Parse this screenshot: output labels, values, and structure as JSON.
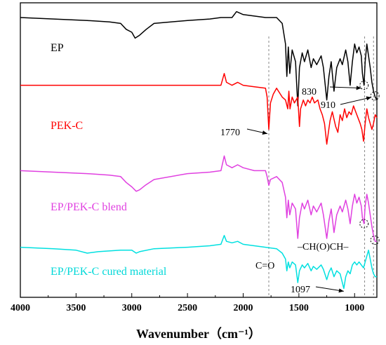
{
  "chart_data": {
    "type": "line",
    "xlabel": "Wavenumber（cm⁻¹）",
    "xlim": [
      4000,
      800
    ],
    "reversed_x": true,
    "ylim": [
      0,
      100
    ],
    "y_ticks_shown": false,
    "grid": false,
    "x_ticks": [
      4000,
      3500,
      3000,
      2500,
      2000,
      1500,
      1000
    ],
    "series": [
      {
        "name": "EP",
        "color": "#000000",
        "points": [
          [
            4000,
            95
          ],
          [
            3700,
            94.5
          ],
          [
            3400,
            94
          ],
          [
            3200,
            93.5
          ],
          [
            3100,
            93
          ],
          [
            3050,
            91
          ],
          [
            3000,
            90
          ],
          [
            2970,
            88
          ],
          [
            2930,
            89
          ],
          [
            2870,
            91
          ],
          [
            2800,
            93
          ],
          [
            2500,
            94
          ],
          [
            2300,
            94.5
          ],
          [
            2200,
            95
          ],
          [
            2100,
            95
          ],
          [
            2060,
            97
          ],
          [
            2000,
            96
          ],
          [
            1900,
            95.5
          ],
          [
            1800,
            95
          ],
          [
            1700,
            95
          ],
          [
            1650,
            93
          ],
          [
            1620,
            86
          ],
          [
            1608,
            75
          ],
          [
            1595,
            85
          ],
          [
            1582,
            76
          ],
          [
            1560,
            84
          ],
          [
            1530,
            80
          ],
          [
            1510,
            65
          ],
          [
            1495,
            78
          ],
          [
            1470,
            83
          ],
          [
            1450,
            80
          ],
          [
            1420,
            84
          ],
          [
            1390,
            78
          ],
          [
            1370,
            81
          ],
          [
            1340,
            79
          ],
          [
            1300,
            82
          ],
          [
            1280,
            78
          ],
          [
            1250,
            67
          ],
          [
            1230,
            75
          ],
          [
            1210,
            80
          ],
          [
            1185,
            70
          ],
          [
            1160,
            78
          ],
          [
            1130,
            81
          ],
          [
            1110,
            79
          ],
          [
            1080,
            84
          ],
          [
            1060,
            80
          ],
          [
            1040,
            72
          ],
          [
            1020,
            80
          ],
          [
            1000,
            86
          ],
          [
            980,
            83
          ],
          [
            960,
            85
          ],
          [
            940,
            82
          ],
          [
            930,
            76
          ],
          [
            915,
            72
          ],
          [
            905,
            80
          ],
          [
            890,
            86
          ],
          [
            875,
            82
          ],
          [
            860,
            78
          ],
          [
            845,
            73
          ],
          [
            830,
            70
          ],
          [
            815,
            68
          ],
          [
            800,
            67
          ]
        ]
      },
      {
        "name": "PEK-C",
        "color": "#ff0000",
        "points": [
          [
            4000,
            72
          ],
          [
            3500,
            72
          ],
          [
            3000,
            72
          ],
          [
            2500,
            72
          ],
          [
            2200,
            72
          ],
          [
            2170,
            76
          ],
          [
            2150,
            73
          ],
          [
            2100,
            72
          ],
          [
            2050,
            73
          ],
          [
            2000,
            72
          ],
          [
            1900,
            71.5
          ],
          [
            1800,
            71
          ],
          [
            1785,
            68
          ],
          [
            1770,
            57
          ],
          [
            1755,
            66
          ],
          [
            1730,
            69
          ],
          [
            1700,
            71
          ],
          [
            1650,
            68
          ],
          [
            1620,
            67
          ],
          [
            1600,
            64
          ],
          [
            1590,
            70
          ],
          [
            1580,
            64
          ],
          [
            1560,
            68
          ],
          [
            1540,
            66
          ],
          [
            1510,
            68
          ],
          [
            1495,
            58
          ],
          [
            1485,
            64
          ],
          [
            1460,
            67
          ],
          [
            1440,
            65
          ],
          [
            1420,
            67
          ],
          [
            1400,
            66
          ],
          [
            1380,
            68
          ],
          [
            1360,
            66
          ],
          [
            1330,
            67
          ],
          [
            1310,
            64
          ],
          [
            1290,
            62
          ],
          [
            1270,
            59
          ],
          [
            1250,
            52
          ],
          [
            1235,
            56
          ],
          [
            1220,
            60
          ],
          [
            1200,
            63
          ],
          [
            1170,
            58
          ],
          [
            1150,
            56
          ],
          [
            1130,
            62
          ],
          [
            1110,
            60
          ],
          [
            1090,
            64
          ],
          [
            1070,
            61
          ],
          [
            1050,
            63
          ],
          [
            1030,
            62
          ],
          [
            1010,
            65
          ],
          [
            990,
            63
          ],
          [
            970,
            61
          ],
          [
            950,
            59
          ],
          [
            935,
            57
          ],
          [
            920,
            53
          ],
          [
            905,
            59
          ],
          [
            890,
            64
          ],
          [
            875,
            61
          ],
          [
            860,
            59
          ],
          [
            845,
            57
          ],
          [
            830,
            59
          ],
          [
            815,
            62
          ],
          [
            800,
            61
          ]
        ]
      },
      {
        "name": "EP/PEK-C blend",
        "color": "#e040e0",
        "points": [
          [
            4000,
            43
          ],
          [
            3700,
            42.5
          ],
          [
            3400,
            42
          ],
          [
            3200,
            41.5
          ],
          [
            3100,
            41
          ],
          [
            3050,
            39
          ],
          [
            3000,
            37.5
          ],
          [
            2960,
            36
          ],
          [
            2930,
            36.5
          ],
          [
            2880,
            38
          ],
          [
            2800,
            40
          ],
          [
            2500,
            42
          ],
          [
            2300,
            42.5
          ],
          [
            2200,
            43
          ],
          [
            2170,
            48
          ],
          [
            2150,
            45
          ],
          [
            2100,
            44
          ],
          [
            2050,
            45
          ],
          [
            2000,
            44
          ],
          [
            1900,
            43
          ],
          [
            1800,
            43
          ],
          [
            1785,
            41
          ],
          [
            1770,
            38
          ],
          [
            1755,
            40
          ],
          [
            1700,
            41
          ],
          [
            1650,
            39
          ],
          [
            1620,
            34
          ],
          [
            1608,
            27
          ],
          [
            1595,
            33
          ],
          [
            1582,
            28
          ],
          [
            1560,
            32
          ],
          [
            1530,
            30
          ],
          [
            1510,
            20
          ],
          [
            1495,
            27
          ],
          [
            1470,
            32
          ],
          [
            1450,
            30
          ],
          [
            1420,
            33
          ],
          [
            1390,
            28
          ],
          [
            1370,
            31
          ],
          [
            1340,
            29
          ],
          [
            1300,
            32
          ],
          [
            1280,
            28
          ],
          [
            1250,
            20
          ],
          [
            1230,
            26
          ],
          [
            1210,
            30
          ],
          [
            1185,
            22
          ],
          [
            1160,
            28
          ],
          [
            1130,
            31
          ],
          [
            1110,
            29
          ],
          [
            1080,
            33
          ],
          [
            1060,
            30
          ],
          [
            1040,
            25
          ],
          [
            1020,
            31
          ],
          [
            1000,
            35
          ],
          [
            980,
            32
          ],
          [
            960,
            34
          ],
          [
            940,
            31
          ],
          [
            930,
            27
          ],
          [
            915,
            25
          ],
          [
            905,
            31
          ],
          [
            890,
            35
          ],
          [
            875,
            32
          ],
          [
            860,
            28
          ],
          [
            845,
            24
          ],
          [
            830,
            21
          ],
          [
            815,
            19
          ],
          [
            800,
            19
          ]
        ]
      },
      {
        "name": "EP/PEK-C cured material",
        "color": "#00e0e0",
        "points": [
          [
            4000,
            17
          ],
          [
            3700,
            16.5
          ],
          [
            3500,
            16
          ],
          [
            3400,
            15
          ],
          [
            3300,
            15.5
          ],
          [
            3100,
            16
          ],
          [
            3000,
            16
          ],
          [
            2960,
            15
          ],
          [
            2930,
            15.5
          ],
          [
            2800,
            16.5
          ],
          [
            2500,
            17
          ],
          [
            2300,
            17.5
          ],
          [
            2200,
            18
          ],
          [
            2170,
            21
          ],
          [
            2150,
            19
          ],
          [
            2100,
            18.5
          ],
          [
            2050,
            19
          ],
          [
            2000,
            18
          ],
          [
            1900,
            17.5
          ],
          [
            1800,
            17
          ],
          [
            1700,
            16.5
          ],
          [
            1650,
            15
          ],
          [
            1620,
            13
          ],
          [
            1608,
            9
          ],
          [
            1595,
            12
          ],
          [
            1582,
            10
          ],
          [
            1560,
            12
          ],
          [
            1530,
            11
          ],
          [
            1510,
            5
          ],
          [
            1495,
            9
          ],
          [
            1470,
            11
          ],
          [
            1450,
            10
          ],
          [
            1420,
            11.5
          ],
          [
            1390,
            9
          ],
          [
            1370,
            10.5
          ],
          [
            1340,
            9.5
          ],
          [
            1300,
            11
          ],
          [
            1280,
            9.5
          ],
          [
            1250,
            6
          ],
          [
            1230,
            8.5
          ],
          [
            1210,
            10
          ],
          [
            1185,
            7
          ],
          [
            1160,
            9
          ],
          [
            1130,
            8
          ],
          [
            1097,
            3
          ],
          [
            1080,
            7
          ],
          [
            1060,
            9
          ],
          [
            1040,
            8
          ],
          [
            1020,
            11
          ],
          [
            1000,
            12
          ],
          [
            980,
            11
          ],
          [
            960,
            12
          ],
          [
            940,
            11
          ],
          [
            920,
            10
          ],
          [
            905,
            12
          ],
          [
            890,
            14
          ],
          [
            875,
            16
          ],
          [
            860,
            13
          ],
          [
            845,
            10
          ],
          [
            830,
            8
          ],
          [
            815,
            7
          ],
          [
            800,
            7
          ]
        ]
      }
    ],
    "series_labels": [
      "EP",
      "PEK-C",
      "EP/PEK-C blend",
      "EP/PEK-C cured material"
    ],
    "annotations": {
      "peak_830": "830",
      "peak_910": "910",
      "peak_1770": "1770",
      "peak_1097": "1097",
      "carbonyl": "C=O",
      "epoxide": "–CH(O)CH–"
    },
    "reference_lines": [
      1770,
      910,
      830
    ]
  }
}
